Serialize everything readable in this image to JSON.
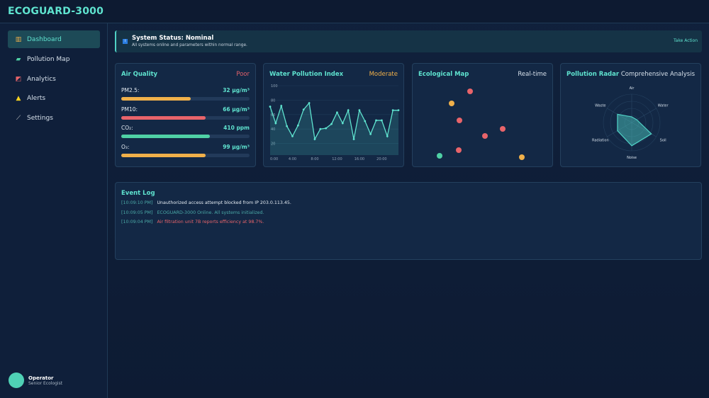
{
  "app": {
    "title": "ECOGUARD-3000"
  },
  "sidebar": {
    "items": [
      {
        "label": "Dashboard",
        "icon": "chart-icon",
        "active": true
      },
      {
        "label": "Pollution Map",
        "icon": "map-icon"
      },
      {
        "label": "Analytics",
        "icon": "analytics-icon"
      },
      {
        "label": "Alerts",
        "icon": "warning-icon"
      },
      {
        "label": "Settings",
        "icon": "wrench-icon"
      }
    ],
    "user": {
      "name": "Operator",
      "role": "Senior Ecologist"
    }
  },
  "banner": {
    "title": "System Status: Nominal",
    "message": "All systems online and parameters within normal range.",
    "action": "Take Action",
    "icon": "info-icon"
  },
  "air_quality": {
    "title": "Air Quality",
    "status": "Poor",
    "status_color": "#e0606a",
    "metrics": [
      {
        "label": "PM2.5:",
        "value": "32 μg/m³",
        "level": 0.54,
        "color": "#f0b04a"
      },
      {
        "label": "PM10:",
        "value": "66 μg/m³",
        "level": 0.66,
        "color": "#e8646a"
      },
      {
        "label": "CO₂:",
        "value": "410 ppm",
        "level": 0.69,
        "color": "#4fd1a5"
      },
      {
        "label": "O₃:",
        "value": "99 μg/m³",
        "level": 0.66,
        "color": "#f0b04a"
      }
    ]
  },
  "water": {
    "title": "Water Pollution Index",
    "status": "Moderate",
    "status_color": "#f0b04a"
  },
  "eco_map": {
    "title": "Ecological Map",
    "status": "Real-time",
    "markers": [
      {
        "status": "alert",
        "color": "#e8646a"
      },
      {
        "status": "warning",
        "color": "#f0b04a"
      },
      {
        "status": "alert",
        "color": "#e8646a"
      },
      {
        "status": "alert",
        "color": "#e8646a"
      },
      {
        "status": "alert",
        "color": "#e8646a"
      },
      {
        "status": "alert",
        "color": "#e8646a"
      },
      {
        "status": "ok",
        "color": "#4fd1a5"
      },
      {
        "status": "warning",
        "color": "#f0b04a"
      }
    ]
  },
  "radar": {
    "title": "Pollution Radar",
    "status": "Comprehensive Analysis"
  },
  "event_log": {
    "title": "Event Log",
    "entries": [
      {
        "time": "[10:09:10 PM]",
        "message": "Unauthorized access attempt blocked from IP 203.0.113.45.",
        "color": "#e4ebf2"
      },
      {
        "time": "[10:09:05 PM]",
        "message": "ECOGUARD-3000 Online. All systems initialized.",
        "color": "#4aa9a6"
      },
      {
        "time": "[10:09:04 PM]",
        "message": "Air filtration unit 7B reports efficiency at 98.7%.",
        "color": "#e8646a"
      }
    ]
  },
  "chart_data": [
    {
      "type": "area",
      "title": "Water Pollution Index",
      "ylim": [
        0,
        100
      ],
      "yticks": [
        "100",
        "80",
        "60",
        "40",
        "20",
        "0"
      ],
      "xticks": [
        "0:00",
        "4:00",
        "8:00",
        "12:00",
        "16:00",
        "20:00"
      ],
      "grid": true,
      "x": [
        0,
        1,
        2,
        3,
        4,
        5,
        6,
        7,
        8,
        9,
        10,
        11,
        12,
        13,
        14,
        15,
        16,
        17,
        18,
        19,
        20,
        21,
        22,
        23
      ],
      "values": [
        71,
        48,
        72,
        44,
        30,
        45,
        67,
        76,
        26,
        40,
        41,
        47,
        63,
        48,
        66,
        26,
        66,
        51,
        33,
        52,
        52,
        30,
        66,
        66
      ],
      "color": "#5fe3cf"
    },
    {
      "type": "radar",
      "title": "Pollution Radar",
      "categories": [
        "Air",
        "Water",
        "Soil",
        "Noise",
        "Radiation",
        "Waste"
      ],
      "values": [
        20,
        20,
        80,
        82,
        58,
        58
      ],
      "rlim": [
        0,
        100
      ],
      "color": "#4fd1c5"
    }
  ]
}
